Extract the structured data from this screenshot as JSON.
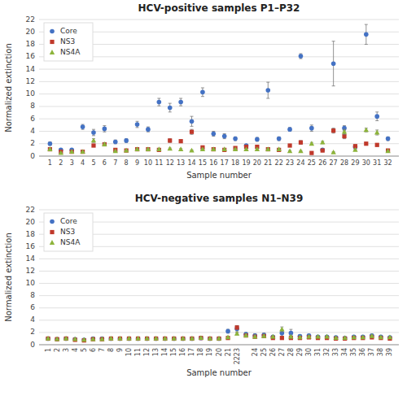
{
  "chart_data": [
    {
      "type": "errorbar",
      "title": "HCV-positive samples P1–P32",
      "xlabel": "Sample number",
      "ylabel": "Normalized extinction",
      "categories": [
        "1",
        "2",
        "3",
        "4",
        "5",
        "6",
        "7",
        "8",
        "9",
        "10",
        "11",
        "12",
        "13",
        "14",
        "15",
        "16",
        "17",
        "18",
        "19",
        "20",
        "21",
        "22",
        "23",
        "24",
        "25",
        "26",
        "27",
        "28",
        "29",
        "30",
        "31",
        "32"
      ],
      "ylim": [
        0,
        22
      ],
      "yticks": [
        0,
        2,
        4,
        6,
        8,
        10,
        12,
        14,
        16,
        18,
        20,
        22
      ],
      "grid": true,
      "legend": "upper left",
      "series": [
        {
          "name": "Core",
          "color": "#4472c4",
          "marker": "circle",
          "values": [
            2.0,
            1.0,
            1.0,
            4.7,
            3.8,
            4.4,
            2.3,
            2.5,
            5.1,
            4.3,
            8.7,
            7.8,
            8.7,
            5.6,
            10.3,
            3.6,
            3.2,
            2.8,
            1.7,
            2.7,
            10.6,
            2.8,
            4.3,
            16.1,
            4.5,
            1.0,
            14.9,
            4.5,
            1.5,
            19.6,
            6.4,
            2.8
          ],
          "errors": [
            0.3,
            0.2,
            0.1,
            0.4,
            0.5,
            0.5,
            0.3,
            0.3,
            0.5,
            0.4,
            0.6,
            0.7,
            0.6,
            0.8,
            0.7,
            0.4,
            0.4,
            0.3,
            0.2,
            0.3,
            1.3,
            0.3,
            0.3,
            0.4,
            0.5,
            0.2,
            3.6,
            0.4,
            0.3,
            1.6,
            0.7,
            0.3
          ]
        },
        {
          "name": "NS3",
          "color": "#c0392b",
          "marker": "square",
          "values": [
            1.1,
            0.7,
            0.7,
            0.7,
            1.7,
            1.9,
            1.0,
            0.9,
            1.1,
            1.1,
            1.0,
            2.5,
            2.4,
            3.9,
            1.4,
            1.1,
            1.0,
            1.3,
            1.5,
            1.5,
            1.1,
            1.0,
            1.7,
            2.2,
            0.5,
            0.9,
            4.1,
            3.2,
            1.6,
            2.0,
            1.8,
            0.9
          ],
          "errors": [
            0.1,
            0.1,
            0.1,
            0.1,
            0.2,
            0.2,
            0.1,
            0.1,
            0.1,
            0.1,
            0.1,
            0.3,
            0.2,
            0.4,
            0.2,
            0.1,
            0.1,
            0.2,
            0.2,
            0.2,
            0.1,
            0.1,
            0.2,
            0.3,
            0.1,
            0.1,
            0.4,
            0.4,
            0.2,
            0.2,
            0.2,
            0.1
          ]
        },
        {
          "name": "NS4A",
          "color": "#8db43b",
          "marker": "triangle",
          "values": [
            1.1,
            0.5,
            0.7,
            0.7,
            2.5,
            1.9,
            0.8,
            0.9,
            1.1,
            1.1,
            1.1,
            1.2,
            1.1,
            0.9,
            1.1,
            1.1,
            1.1,
            1.1,
            1.1,
            1.1,
            1.1,
            1.1,
            0.8,
            0.8,
            2.0,
            2.2,
            0.6,
            3.9,
            1.0,
            4.2,
            3.8,
            0.8
          ],
          "errors": [
            0.1,
            0.1,
            0.1,
            0.1,
            0.3,
            0.2,
            0.1,
            0.1,
            0.1,
            0.1,
            0.1,
            0.1,
            0.1,
            0.1,
            0.1,
            0.1,
            0.1,
            0.1,
            0.1,
            0.1,
            0.1,
            0.1,
            0.1,
            0.1,
            0.2,
            0.2,
            0.1,
            0.4,
            0.1,
            0.3,
            0.4,
            0.1
          ]
        }
      ]
    },
    {
      "type": "errorbar",
      "title": "HCV-negative samples N1–N39",
      "xlabel": "Sample number",
      "ylabel": "Normalized extinction",
      "categories": [
        "1",
        "2",
        "3",
        "4",
        "5",
        "6",
        "7",
        "8",
        "9",
        "10",
        "11",
        "12",
        "13",
        "14",
        "15",
        "16",
        "17",
        "18",
        "19",
        "20",
        "21",
        "2223",
        null,
        "24",
        "25",
        "26",
        "27",
        "28",
        "29",
        "30",
        "31",
        "32",
        "33",
        "34",
        "35",
        "36",
        "37",
        "38",
        "39"
      ],
      "ylim": [
        0,
        22
      ],
      "yticks": [
        0,
        2,
        4,
        6,
        8,
        10,
        12,
        14,
        16,
        18,
        20,
        22
      ],
      "grid": true,
      "legend": "upper left",
      "series": [
        {
          "name": "Core",
          "color": "#4472c4",
          "marker": "circle",
          "values": [
            1.0,
            0.9,
            1.0,
            0.9,
            0.8,
            1.0,
            1.0,
            1.0,
            1.0,
            1.0,
            1.0,
            1.0,
            1.0,
            1.0,
            1.0,
            1.0,
            1.0,
            1.1,
            1.0,
            1.0,
            2.2,
            2.6,
            1.7,
            1.5,
            1.6,
            1.3,
            1.9,
            1.9,
            1.4,
            1.5,
            1.3,
            1.3,
            1.2,
            1.1,
            1.3,
            1.3,
            1.5,
            1.3,
            1.2
          ],
          "errors": [
            0.1,
            0.1,
            0.1,
            0.1,
            0.1,
            0.1,
            0.1,
            0.1,
            0.1,
            0.1,
            0.1,
            0.1,
            0.1,
            0.1,
            0.1,
            0.1,
            0.1,
            0.1,
            0.1,
            0.1,
            0.3,
            0.5,
            0.3,
            0.3,
            0.3,
            0.2,
            0.5,
            0.6,
            0.2,
            0.2,
            0.2,
            0.2,
            0.1,
            0.1,
            0.2,
            0.2,
            0.2,
            0.2,
            0.1
          ]
        },
        {
          "name": "NS3",
          "color": "#c0392b",
          "marker": "square",
          "values": [
            1.0,
            0.9,
            1.0,
            0.8,
            0.7,
            0.9,
            0.9,
            1.0,
            1.0,
            1.0,
            1.0,
            1.0,
            1.0,
            1.0,
            1.0,
            1.0,
            1.0,
            1.1,
            1.0,
            1.0,
            1.1,
            2.8,
            1.5,
            1.3,
            1.4,
            1.1,
            1.1,
            1.1,
            1.1,
            1.2,
            1.1,
            1.1,
            1.0,
            1.0,
            1.1,
            1.1,
            1.2,
            1.1,
            1.0
          ],
          "errors": [
            0.1,
            0.1,
            0.1,
            0.1,
            0.1,
            0.1,
            0.1,
            0.1,
            0.1,
            0.1,
            0.1,
            0.1,
            0.1,
            0.1,
            0.1,
            0.1,
            0.1,
            0.1,
            0.1,
            0.1,
            0.1,
            0.3,
            0.2,
            0.2,
            0.2,
            0.1,
            0.1,
            0.1,
            0.1,
            0.1,
            0.1,
            0.1,
            0.1,
            0.1,
            0.1,
            0.1,
            0.1,
            0.1,
            0.1
          ]
        },
        {
          "name": "NS4A",
          "color": "#8db43b",
          "marker": "triangle",
          "values": [
            1.0,
            0.9,
            1.0,
            0.9,
            0.8,
            0.9,
            0.9,
            1.0,
            1.0,
            1.0,
            1.0,
            1.0,
            1.0,
            1.0,
            1.0,
            1.0,
            1.0,
            1.1,
            1.0,
            1.0,
            1.2,
            1.8,
            1.5,
            1.3,
            1.4,
            1.3,
            2.5,
            1.3,
            1.2,
            1.3,
            1.3,
            1.3,
            1.1,
            1.1,
            1.2,
            1.2,
            1.4,
            1.2,
            1.2
          ],
          "errors": [
            0.1,
            0.1,
            0.1,
            0.1,
            0.1,
            0.1,
            0.1,
            0.1,
            0.1,
            0.1,
            0.1,
            0.1,
            0.1,
            0.1,
            0.1,
            0.1,
            0.1,
            0.1,
            0.1,
            0.1,
            0.1,
            0.2,
            0.2,
            0.2,
            0.2,
            0.2,
            0.4,
            0.2,
            0.1,
            0.1,
            0.1,
            0.1,
            0.1,
            0.1,
            0.1,
            0.1,
            0.2,
            0.1,
            0.1
          ]
        }
      ]
    }
  ]
}
